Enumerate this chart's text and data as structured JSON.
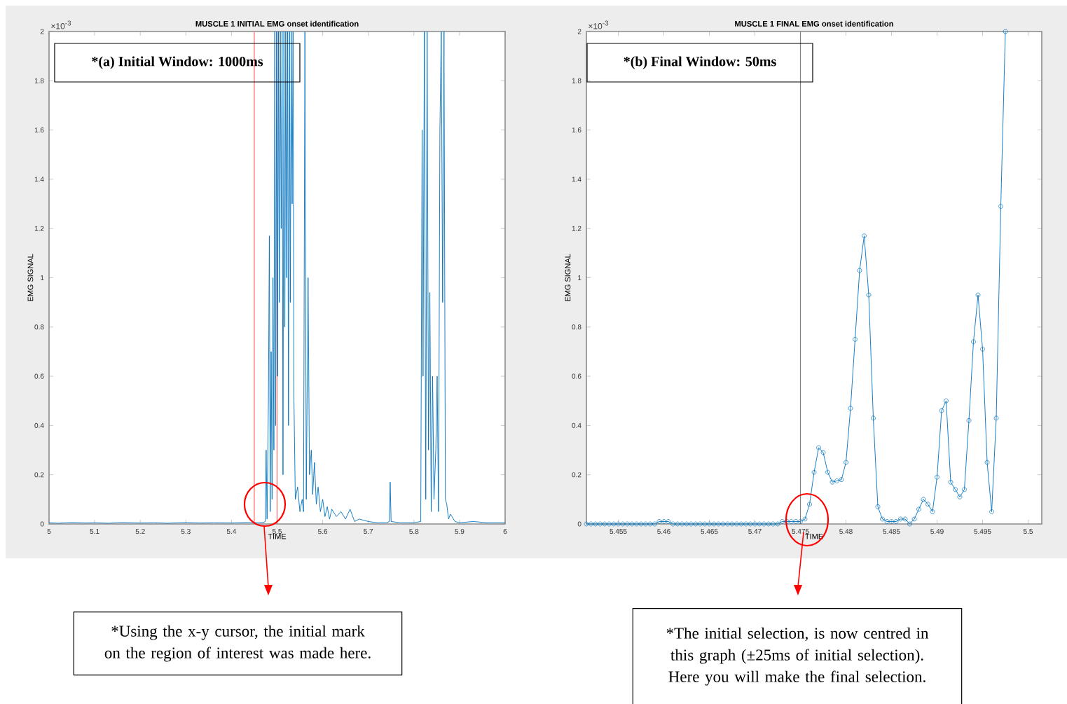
{
  "chart_data": [
    {
      "type": "line",
      "title": "MUSCLE 1 INITIAL EMG onset identification",
      "xlabel": "TIME",
      "ylabel": "EMG SIGNAL",
      "color": "#0072bd",
      "annotations": [
        "×10$^{-3}$",
        "*(a) Initial Window: 1000ms",
        "*Using the x-y cursor, the initial mark on the region of interest was made here."
      ],
      "x": [
        5.0,
        5.02,
        5.05,
        5.08,
        5.1,
        5.13,
        5.16,
        5.2,
        5.23,
        5.26,
        5.3,
        5.33,
        5.36,
        5.4,
        5.43,
        5.46,
        5.47,
        5.474,
        5.476,
        5.478,
        5.481,
        5.483,
        5.485,
        5.487,
        5.489,
        5.491,
        5.493,
        5.495,
        5.497,
        5.499,
        5.501,
        5.503,
        5.505,
        5.507,
        5.509,
        5.511,
        5.513,
        5.515,
        5.517,
        5.519,
        5.521,
        5.523,
        5.525,
        5.527,
        5.529,
        5.531,
        5.533,
        5.535,
        5.537,
        5.54,
        5.545,
        5.55,
        5.555,
        5.558,
        5.561,
        5.564,
        5.568,
        5.571,
        5.575,
        5.578,
        5.582,
        5.586,
        5.59,
        5.595,
        5.6,
        5.605,
        5.61,
        5.615,
        5.62,
        5.63,
        5.64,
        5.65,
        5.66,
        5.67,
        5.68,
        5.7,
        5.72,
        5.74,
        5.746,
        5.748,
        5.75,
        5.77,
        5.8,
        5.815,
        5.818,
        5.82,
        5.823,
        5.826,
        5.829,
        5.832,
        5.835,
        5.838,
        5.841,
        5.844,
        5.848,
        5.851,
        5.854,
        5.857,
        5.86,
        5.863,
        5.866,
        5.869,
        5.872,
        5.876,
        5.88,
        5.89,
        5.9,
        5.93,
        5.96,
        6.0
      ],
      "values": [
        0.005,
        0.003,
        0.006,
        0.004,
        0.005,
        0.003,
        0.006,
        0.004,
        0.005,
        0.003,
        0.006,
        0.004,
        0.005,
        0.004,
        0.006,
        0.005,
        0.006,
        0.01,
        0.3,
        0.02,
        0.5,
        1.17,
        0.05,
        0.7,
        0.1,
        1.0,
        0.3,
        2,
        0.4,
        2,
        0.6,
        2,
        0.9,
        2,
        1.2,
        2,
        0.2,
        2,
        0.8,
        2,
        1.0,
        2,
        0.4,
        2,
        0.9,
        2,
        1.3,
        2,
        0.5,
        0.1,
        0.15,
        0.05,
        0.1,
        0.05,
        2,
        0.1,
        1.0,
        0.2,
        0.3,
        0.12,
        0.25,
        0.08,
        0.15,
        0.05,
        0.1,
        0.03,
        0.07,
        0.02,
        0.06,
        0.03,
        0.05,
        0.02,
        0.06,
        0.01,
        0.02,
        0.01,
        0.005,
        0.005,
        0.01,
        0.17,
        0.01,
        0.005,
        0.005,
        0.01,
        1.6,
        0.6,
        2,
        0.1,
        2,
        0.3,
        0.94,
        0.05,
        0.6,
        0.1,
        0.3,
        0.6,
        0.05,
        1.6,
        2,
        0.9,
        2,
        0.1,
        0.08,
        0.02,
        0.04,
        0.01,
        0.005,
        0.01,
        0.005,
        0.005
      ],
      "xlim": [
        5,
        6
      ],
      "ylim": [
        0,
        2
      ],
      "xticks": [
        5,
        5.1,
        5.2,
        5.3,
        5.4,
        5.5,
        5.6,
        5.7,
        5.8,
        5.9,
        6
      ],
      "yticks": [
        0,
        0.2,
        0.4,
        0.6,
        0.8,
        1,
        1.2,
        1.4,
        1.6,
        1.8,
        2
      ],
      "ref_lines": [
        {
          "axis": "x",
          "value": 5.45,
          "color": "#ff6666"
        },
        {
          "axis": "x",
          "value": 5.5,
          "color": "#ff6666"
        }
      ]
    },
    {
      "type": "line",
      "title": "MUSCLE 1 FINAL EMG onset identification",
      "xlabel": "TIME",
      "ylabel": "EMG SIGNAL",
      "color": "#0072bd",
      "marker": "circle",
      "annotations": [
        "×10$^{-3}$",
        "*(b) Final Window: 50ms",
        "*The initial selection, is now centred in this graph (±25ms of initial selection). Here you will make the final selection."
      ],
      "x": [
        5.4515,
        5.452,
        5.4525,
        5.453,
        5.4535,
        5.454,
        5.4545,
        5.455,
        5.4555,
        5.456,
        5.4565,
        5.457,
        5.4575,
        5.458,
        5.4585,
        5.459,
        5.4595,
        5.46,
        5.4605,
        5.461,
        5.4615,
        5.462,
        5.4625,
        5.463,
        5.4635,
        5.464,
        5.4645,
        5.465,
        5.4655,
        5.466,
        5.4665,
        5.467,
        5.4675,
        5.468,
        5.4685,
        5.469,
        5.4695,
        5.47,
        5.4705,
        5.471,
        5.4715,
        5.472,
        5.4725,
        5.473,
        5.4735,
        5.474,
        5.4745,
        5.475,
        5.4755,
        5.476,
        5.4765,
        5.477,
        5.4775,
        5.478,
        5.4785,
        5.479,
        5.4795,
        5.48,
        5.4805,
        5.481,
        5.4815,
        5.482,
        5.4825,
        5.483,
        5.4835,
        5.484,
        5.4845,
        5.485,
        5.4855,
        5.486,
        5.4865,
        5.487,
        5.4875,
        5.488,
        5.4885,
        5.489,
        5.4895,
        5.49,
        5.4905,
        5.491,
        5.4915,
        5.492,
        5.4925,
        5.493,
        5.4935,
        5.494,
        5.4945,
        5.495,
        5.4955,
        5.496,
        5.4965,
        5.497,
        5.4975
      ],
      "values": [
        0,
        0,
        0,
        0,
        0,
        0,
        0,
        0,
        0,
        0,
        0,
        0,
        0,
        0,
        0,
        0,
        0.01,
        0.01,
        0.01,
        0,
        0,
        0,
        0,
        0,
        0,
        0,
        0,
        0,
        0,
        0,
        0,
        0,
        0,
        0,
        0,
        0,
        0,
        0,
        0,
        0,
        0,
        0,
        0,
        0.01,
        0.01,
        0.01,
        0.01,
        0.01,
        0.02,
        0.08,
        0.21,
        0.31,
        0.29,
        0.21,
        0.17,
        0.175,
        0.18,
        0.25,
        0.47,
        0.75,
        1.03,
        1.17,
        0.93,
        0.43,
        0.07,
        0.02,
        0.01,
        0.01,
        0.01,
        0.02,
        0.02,
        0,
        0.02,
        0.06,
        0.1,
        0.08,
        0.05,
        0.19,
        0.46,
        0.5,
        0.17,
        0.14,
        0.11,
        0.14,
        0.42,
        0.74,
        0.93,
        0.71,
        0.25,
        0.05,
        0.43,
        1.29,
        2
      ],
      "xlim": [
        5.4515,
        5.5015
      ],
      "ylim": [
        0,
        2
      ],
      "xticks": [
        5.455,
        5.46,
        5.465,
        5.47,
        5.475,
        5.48,
        5.485,
        5.49,
        5.495,
        5.5
      ],
      "yticks": [
        0,
        0.2,
        0.4,
        0.6,
        0.8,
        1,
        1.2,
        1.4,
        1.6,
        1.8,
        2
      ],
      "ref_lines": [
        {
          "axis": "x",
          "value": 5.475,
          "color": "#808080"
        }
      ]
    }
  ]
}
